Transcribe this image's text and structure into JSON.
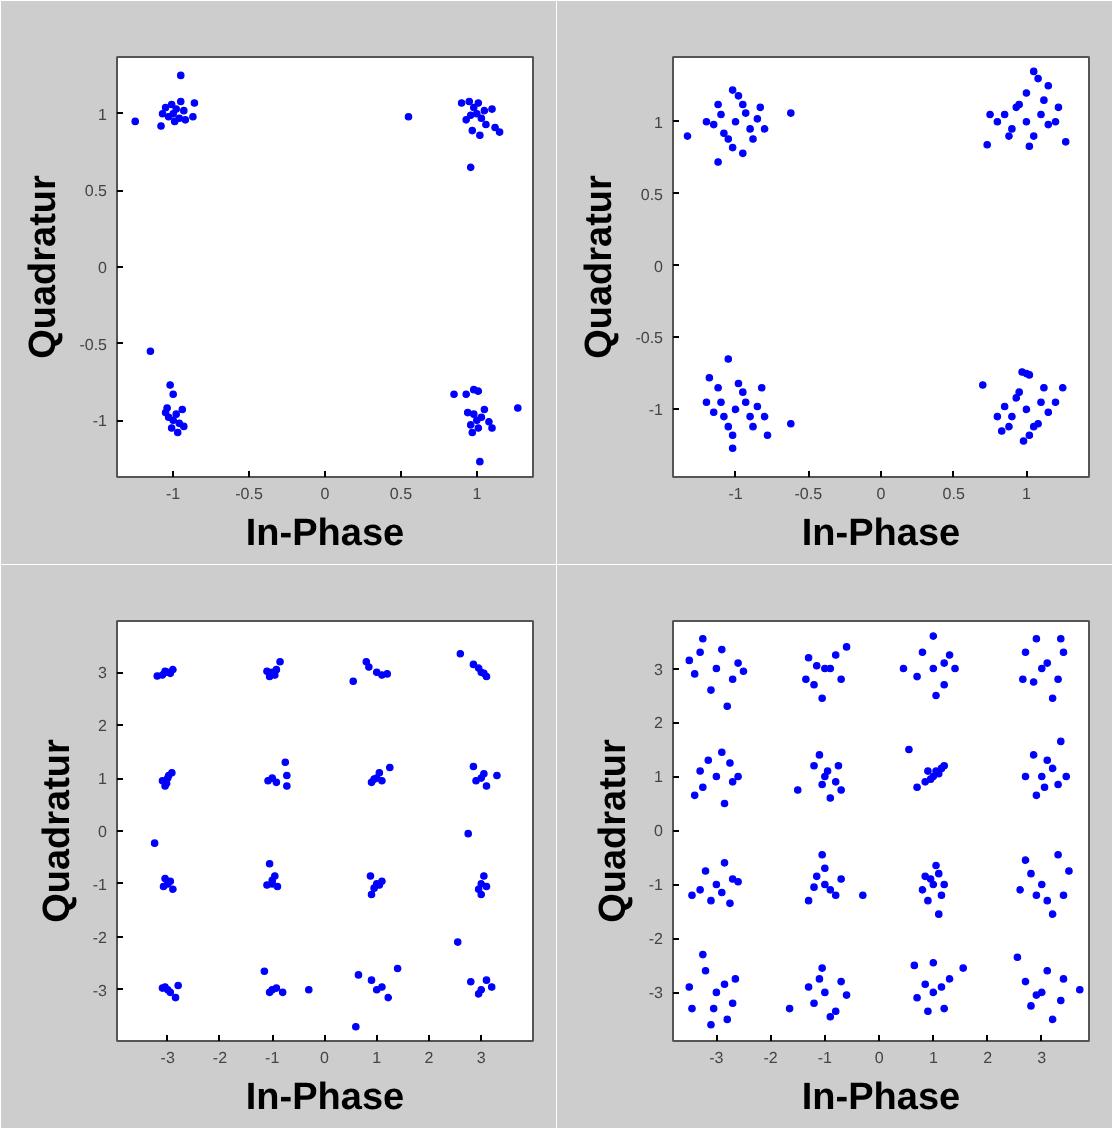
{
  "chart_data": [
    {
      "type": "scatter",
      "xlabel": "In-Phase",
      "ylabel": "Quadratur",
      "xlim": [
        -1.37,
        1.37
      ],
      "ylim": [
        -1.37,
        1.37
      ],
      "xticks": [
        -1,
        -0.5,
        0,
        0.5,
        1
      ],
      "yticks": [
        -1,
        -0.5,
        0,
        0.5,
        1
      ],
      "marker": "circle",
      "series": [
        {
          "color": "#0000ff",
          "x": [
            -1.0,
            -0.98,
            -1.03,
            -0.96,
            -1.05,
            -0.93,
            -1.01,
            -0.99,
            -0.95,
            -1.07,
            -1.25,
            -0.95,
            -1.08,
            -0.86,
            -0.87,
            -0.92,
            1.0,
            0.98,
            1.03,
            0.96,
            1.05,
            0.93,
            1.01,
            1.06,
            0.95,
            1.02,
            0.55,
            0.96,
            1.15,
            1.12,
            1.1,
            0.9,
            0.97,
            -1.0,
            -0.98,
            -1.03,
            -0.96,
            -1.01,
            -0.94,
            -1.05,
            -0.97,
            -0.93,
            -1.15,
            -1.02,
            -1.0,
            -1.04,
            1.0,
            0.98,
            1.03,
            0.96,
            1.01,
            1.05,
            0.97,
            1.08,
            0.94,
            1.27,
            1.02,
            0.85,
            0.98,
            1.01,
            0.93,
            1.1
          ],
          "values": [
            1.0,
            1.03,
            0.98,
            0.97,
            1.04,
            1.02,
            1.06,
            0.95,
            1.08,
            1.0,
            0.95,
            1.25,
            0.92,
            1.07,
            0.98,
            0.96,
            1.0,
            1.04,
            0.97,
            0.99,
            1.02,
            0.96,
            1.07,
            0.93,
            1.08,
            0.86,
            0.98,
            0.65,
            0.88,
            0.91,
            1.03,
            1.07,
            0.89,
            -1.0,
            -0.96,
            -0.98,
            -1.02,
            -1.05,
            -0.93,
            -0.95,
            -1.08,
            -1.04,
            -0.55,
            -0.77,
            -0.83,
            -0.92,
            -1.0,
            -0.96,
            -0.98,
            -1.03,
            -1.05,
            -0.93,
            -1.08,
            -1.01,
            -0.95,
            -0.92,
            -1.27,
            -0.83,
            -0.8,
            -0.81,
            -0.83,
            -1.05
          ]
        }
      ]
    },
    {
      "type": "scatter",
      "xlabel": "In-Phase",
      "ylabel": "Quadratur",
      "xlim": [
        -1.43,
        1.43
      ],
      "ylim": [
        -1.47,
        1.45
      ],
      "xticks": [
        -1,
        -0.5,
        0,
        0.5,
        1
      ],
      "yticks": [
        -1,
        -0.5,
        0,
        0.5,
        1
      ],
      "marker": "circle",
      "series": [
        {
          "color": "#0000ff",
          "x": [
            -1.0,
            -1.1,
            -0.9,
            -1.05,
            -0.95,
            -1.15,
            -0.85,
            -1.02,
            -0.98,
            -1.12,
            -0.88,
            -1.2,
            -0.8,
            -1.08,
            -0.93,
            -1.33,
            -0.62,
            -1.12,
            -1.02,
            -0.95,
            -0.83,
            1.0,
            1.1,
            0.9,
            1.05,
            0.95,
            1.15,
            0.85,
            1.02,
            1.0,
            1.12,
            0.88,
            1.2,
            0.8,
            1.08,
            1.05,
            1.27,
            0.73,
            0.93,
            1.22,
            0.75,
            1.15,
            -1.0,
            -1.1,
            -0.9,
            -1.05,
            -0.95,
            -1.15,
            -0.85,
            -1.02,
            -0.98,
            -1.12,
            -0.88,
            -1.2,
            -0.8,
            -1.05,
            -1.02,
            -0.62,
            -1.18,
            -0.78,
            -1.08,
            -0.93,
            -0.82,
            1.0,
            1.1,
            0.9,
            1.05,
            0.95,
            1.15,
            0.85,
            1.02,
            1.0,
            1.12,
            0.88,
            1.2,
            0.8,
            0.7,
            0.98,
            1.25,
            0.97,
            1.08,
            0.93,
            0.83,
            1.02
          ],
          "values": [
            1.0,
            1.05,
            0.95,
            0.88,
            1.12,
            0.98,
            1.02,
            0.82,
            1.18,
            1.12,
            0.88,
            1.0,
            0.95,
            0.92,
            1.06,
            0.9,
            1.06,
            0.72,
            1.22,
            0.78,
            1.1,
            1.0,
            1.05,
            0.95,
            0.9,
            1.12,
            0.98,
            1.05,
            0.83,
            1.2,
            1.15,
            0.9,
            1.0,
            1.0,
            1.3,
            1.35,
            0.86,
            0.84,
            1.1,
            1.1,
            1.05,
            1.25,
            -1.0,
            -0.95,
            -1.05,
            -1.12,
            -0.88,
            -1.02,
            -0.98,
            -1.18,
            -0.82,
            -0.85,
            -1.12,
            -0.95,
            -1.05,
            -0.65,
            -1.27,
            -1.1,
            -0.78,
            -1.18,
            -1.05,
            -0.95,
            -0.85,
            -1.0,
            -0.95,
            -1.05,
            -1.12,
            -0.88,
            -1.02,
            -0.98,
            -1.18,
            -0.75,
            -0.85,
            -1.12,
            -0.95,
            -1.05,
            -0.83,
            -1.22,
            -0.85,
            -0.74,
            -1.1,
            -0.92,
            -1.15,
            -0.76
          ]
        }
      ]
    },
    {
      "type": "scatter",
      "xlabel": "In-Phase",
      "ylabel": "Quadratur",
      "xlim": [
        -3.97,
        3.99
      ],
      "ylim": [
        -3.97,
        3.97
      ],
      "xticks": [
        -3,
        -2,
        -1,
        0,
        1,
        2,
        3
      ],
      "yticks": [
        -3,
        -2,
        -1,
        0,
        1,
        2,
        3
      ],
      "marker": "circle",
      "series": [
        {
          "color": "#0000ff",
          "x": [
            -3.0,
            -3.1,
            -2.9,
            -3.2,
            -2.95,
            -3.05,
            -1.0,
            -1.1,
            -0.95,
            -0.85,
            -1.05,
            -0.92,
            1.0,
            0.85,
            1.1,
            0.55,
            0.8,
            1.2,
            3.0,
            2.6,
            2.85,
            3.1,
            2.95,
            3.05,
            -3.0,
            -3.05,
            -2.92,
            -3.1,
            -2.98,
            -3.02,
            -1.0,
            -0.75,
            -0.72,
            -0.72,
            -1.08,
            -0.92,
            1.0,
            1.25,
            0.9,
            1.1,
            1.05,
            0.95,
            3.0,
            2.85,
            3.3,
            3.1,
            2.9,
            3.05,
            -3.0,
            -3.25,
            -3.05,
            -2.9,
            -3.08,
            -2.95,
            -1.0,
            -1.05,
            -0.95,
            -1.1,
            -0.9,
            -1.0,
            1.0,
            0.9,
            0.88,
            1.1,
            0.95,
            1.05,
            3.0,
            2.75,
            3.05,
            2.95,
            3.1,
            3.0,
            -3.0,
            -2.8,
            -2.85,
            -3.1,
            -2.95,
            -3.05,
            -1.0,
            -1.15,
            -0.3,
            -0.8,
            -1.05,
            -0.92,
            1.0,
            0.65,
            0.6,
            1.4,
            1.22,
            0.9,
            1.1,
            3.0,
            2.55,
            2.8,
            3.2,
            2.95,
            3.1
          ],
          "values": [
            3.0,
            2.95,
            3.05,
            2.93,
            2.98,
            3.02,
            3.0,
            3.02,
            2.95,
            3.2,
            2.92,
            3.05,
            3.0,
            3.1,
            2.95,
            2.83,
            3.2,
            2.97,
            3.0,
            3.35,
            3.15,
            2.92,
            3.08,
            2.98,
            1.0,
            0.85,
            1.1,
            0.95,
            1.05,
            0.9,
            1.0,
            1.3,
            1.05,
            0.85,
            0.95,
            0.92,
            1.0,
            1.2,
            0.92,
            0.95,
            1.1,
            0.98,
            1.0,
            1.22,
            1.05,
            0.85,
            0.95,
            1.08,
            -1.0,
            -0.23,
            -0.9,
            -1.1,
            -1.05,
            -0.95,
            -1.0,
            -0.62,
            -0.85,
            -1.02,
            -1.05,
            -0.93,
            -1.0,
            -1.2,
            -0.85,
            -0.95,
            -1.08,
            -1.02,
            -1.0,
            -0.05,
            -0.85,
            -1.1,
            -1.05,
            -1.2,
            -3.0,
            -2.92,
            -3.15,
            -2.97,
            -3.05,
            -2.95,
            -3.0,
            -2.65,
            -3.0,
            -3.05,
            -3.05,
            -2.97,
            -3.0,
            -2.72,
            -3.7,
            -2.6,
            -3.15,
            -2.82,
            -2.95,
            -3.0,
            -2.1,
            -2.85,
            -2.95,
            -3.08,
            -2.82
          ]
        }
      ]
    },
    {
      "type": "scatter",
      "xlabel": "In-Phase",
      "ylabel": "Quadratur",
      "xlim": [
        -3.8,
        3.87
      ],
      "ylim": [
        -3.9,
        3.88
      ],
      "xticks": [
        -3,
        -2,
        -1,
        0,
        1,
        2,
        3
      ],
      "yticks": [
        -3,
        -2,
        -1,
        0,
        1,
        2,
        3
      ],
      "marker": "circle",
      "series": [
        {
          "color": "#0000ff",
          "x": [
            -3.0,
            -3.3,
            -2.7,
            -3.4,
            -2.6,
            -3.1,
            -2.9,
            -3.25,
            -2.8,
            -3.5,
            -2.5,
            -1.0,
            -1.3,
            -0.7,
            -1.2,
            -0.8,
            -1.05,
            -0.6,
            -1.35,
            -0.9,
            -1.15,
            1.0,
            1.3,
            0.7,
            1.2,
            0.8,
            1.05,
            1.4,
            0.45,
            1.0,
            1.2,
            3.0,
            2.7,
            3.3,
            2.65,
            3.4,
            3.2,
            2.9,
            3.35,
            2.85,
            3.1,
            -3.0,
            -3.3,
            -2.7,
            -3.4,
            -2.6,
            -2.9,
            -2.85,
            -3.15,
            -2.75,
            -3.25,
            -1.0,
            -1.2,
            -0.8,
            -1.5,
            -0.75,
            -0.9,
            -1.1,
            -0.7,
            -1.05,
            -0.95,
            1.0,
            1.15,
            0.85,
            0.55,
            1.1,
            0.7,
            0.9,
            1.2,
            0.95,
            1.05,
            3.0,
            3.35,
            2.7,
            3.3,
            3.1,
            2.9,
            3.45,
            2.85,
            3.05,
            3.2,
            -3.0,
            -3.3,
            -2.7,
            -3.45,
            -2.6,
            -2.85,
            -2.75,
            -3.1,
            -3.2,
            -2.9,
            -1.0,
            -1.05,
            -0.7,
            -0.3,
            -1.3,
            -0.8,
            -1.15,
            -0.9,
            -1.2,
            -1.0,
            1.0,
            1.1,
            0.85,
            1.2,
            0.9,
            1.05,
            0.8,
            1.15,
            0.95,
            1.1,
            3.0,
            2.7,
            3.3,
            3.4,
            2.6,
            3.2,
            2.8,
            3.1,
            2.9,
            3.5,
            -3.0,
            -3.25,
            -2.7,
            -3.45,
            -2.65,
            -3.1,
            -3.5,
            -2.8,
            -3.2,
            -2.85,
            -3.05,
            -1.0,
            -1.65,
            -1.3,
            -0.7,
            -0.8,
            -1.05,
            -0.6,
            -1.2,
            -0.9,
            -1.1,
            1.0,
            0.65,
            1.3,
            0.7,
            1.2,
            1.0,
            1.55,
            0.9,
            1.15,
            0.85,
            3.0,
            2.55,
            3.35,
            3.7,
            2.7,
            3.2,
            2.8,
            3.1,
            3.4,
            2.9
          ],
          "values": [
            3.0,
            3.3,
            2.8,
            2.9,
            3.1,
            2.6,
            3.35,
            3.55,
            2.3,
            3.15,
            2.95,
            3.0,
            3.2,
            2.8,
            2.7,
            3.25,
            2.45,
            3.4,
            2.8,
            3.0,
            3.05,
            3.0,
            3.25,
            2.85,
            2.7,
            3.3,
            2.5,
            3.0,
            3.0,
            3.6,
            3.1,
            3.0,
            3.3,
            2.8,
            2.8,
            3.3,
            2.45,
            3.55,
            3.55,
            2.75,
            3.1,
            1.0,
            1.1,
            0.9,
            0.65,
            1.0,
            1.45,
            0.5,
            1.3,
            1.25,
            0.8,
            1.0,
            1.2,
            0.9,
            0.75,
            1.2,
            0.6,
            1.4,
            0.75,
            0.85,
            1.1,
            1.0,
            1.15,
            0.9,
            1.5,
            1.05,
            0.8,
            1.1,
            1.2,
            0.95,
            1.1,
            1.0,
            1.65,
            1.0,
            0.85,
            1.3,
            0.65,
            1.0,
            1.4,
            0.8,
            1.15,
            -1.0,
            -1.1,
            -0.9,
            -1.2,
            -0.95,
            -0.6,
            -1.35,
            -1.3,
            -0.75,
            -1.15,
            -1.0,
            -0.45,
            -0.9,
            -1.2,
            -1.3,
            -1.2,
            -0.85,
            -1.1,
            -1.05,
            -0.7,
            -1.0,
            -1.55,
            -0.85,
            -1.0,
            -1.3,
            -0.65,
            -1.1,
            -1.2,
            -0.9,
            -0.8,
            -1.0,
            -0.55,
            -0.45,
            -1.2,
            -1.1,
            -1.55,
            -0.8,
            -1.3,
            -1.2,
            -0.75,
            -3.0,
            -2.3,
            -3.2,
            -3.3,
            -2.75,
            -3.6,
            -2.9,
            -3.5,
            -2.6,
            -2.85,
            -3.3,
            -3.0,
            -3.3,
            -2.9,
            -2.8,
            -3.35,
            -2.55,
            -3.05,
            -3.2,
            -3.45,
            -2.75,
            -3.0,
            -2.5,
            -2.75,
            -3.1,
            -3.3,
            -2.45,
            -2.55,
            -3.35,
            -2.9,
            -2.85,
            -3.0,
            -2.35,
            -3.15,
            -2.95,
            -2.8,
            -3.5,
            -3.25,
            -2.6,
            -2.75,
            -3.05
          ]
        }
      ]
    }
  ]
}
